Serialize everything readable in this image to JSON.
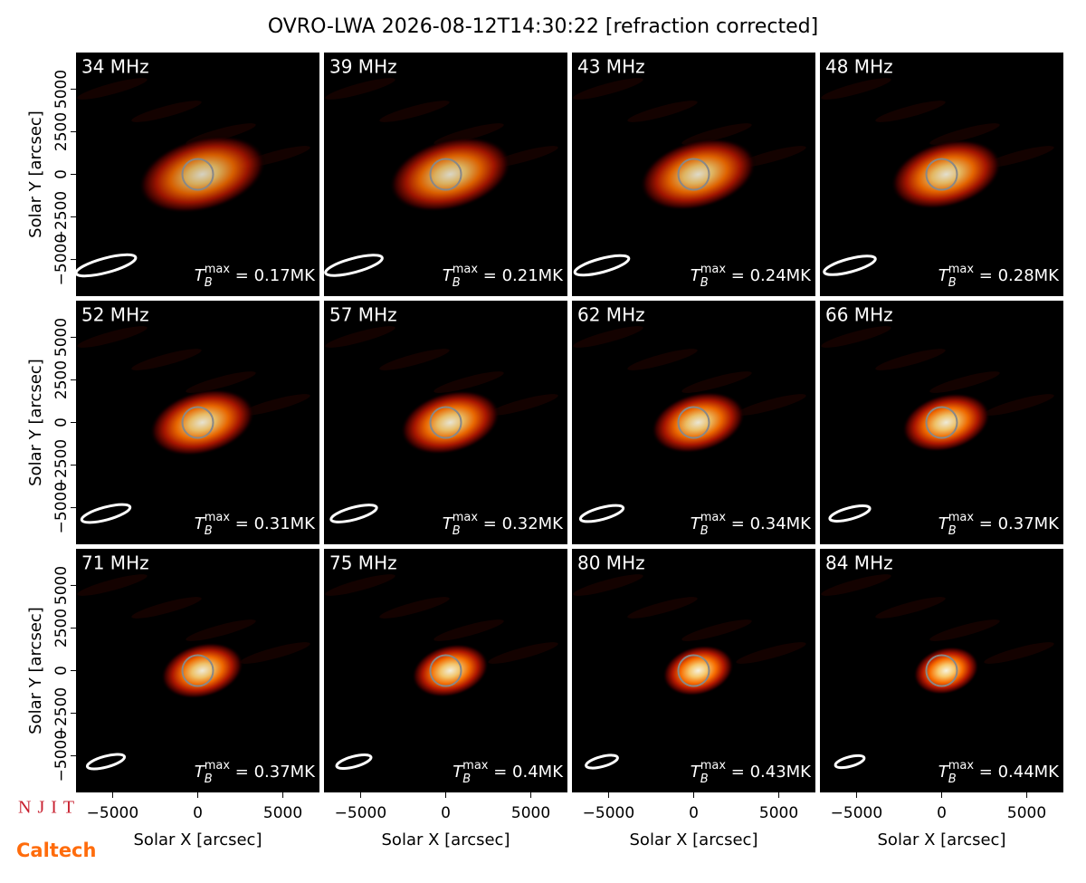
{
  "title": "OVRO-LWA 2026-08-12T14:30:22 [refraction corrected]",
  "xlabel": "Solar X [arcsec]",
  "ylabel": "Solar Y [arcsec]",
  "xlim": [
    -7150,
    7150
  ],
  "ylim": [
    -7150,
    7150
  ],
  "xticks": [
    {
      "value": -5000,
      "label": "−5000"
    },
    0,
    5000
  ],
  "yticks": [
    {
      "value": -5000,
      "label": "−5000"
    },
    {
      "value": -2500,
      "label": "−2500"
    },
    0,
    2500,
    5000
  ],
  "annotation": {
    "symbol": "T",
    "sub": "B",
    "sup": "max",
    "eq": " = "
  },
  "logos": [
    "NJIT",
    "Caltech"
  ],
  "chart_data": [
    {
      "type": "image",
      "label": "34 MHz",
      "values": [
        0.17
      ],
      "value_labels": [
        "0.17MK"
      ]
    },
    {
      "type": "image",
      "label": "39 MHz",
      "values": [
        0.21
      ],
      "value_labels": [
        "0.21MK"
      ]
    },
    {
      "type": "image",
      "label": "43 MHz",
      "values": [
        0.24
      ],
      "value_labels": [
        "0.24MK"
      ]
    },
    {
      "type": "image",
      "label": "48 MHz",
      "values": [
        0.28
      ],
      "value_labels": [
        "0.28MK"
      ]
    },
    {
      "type": "image",
      "label": "52 MHz",
      "values": [
        0.31
      ],
      "value_labels": [
        "0.31MK"
      ]
    },
    {
      "type": "image",
      "label": "57 MHz",
      "values": [
        0.32
      ],
      "value_labels": [
        "0.32MK"
      ]
    },
    {
      "type": "image",
      "label": "62 MHz",
      "values": [
        0.34
      ],
      "value_labels": [
        "0.34MK"
      ]
    },
    {
      "type": "image",
      "label": "66 MHz",
      "values": [
        0.37
      ],
      "value_labels": [
        "0.37MK"
      ]
    },
    {
      "type": "image",
      "label": "71 MHz",
      "values": [
        0.37
      ],
      "value_labels": [
        "0.37MK"
      ]
    },
    {
      "type": "image",
      "label": "75 MHz",
      "values": [
        0.4
      ],
      "value_labels": [
        "0.4MK"
      ]
    },
    {
      "type": "image",
      "label": "80 MHz",
      "values": [
        0.43
      ],
      "value_labels": [
        "0.43MK"
      ]
    },
    {
      "type": "image",
      "label": "84 MHz",
      "values": [
        0.44
      ],
      "value_labels": [
        "0.44MK"
      ]
    }
  ]
}
